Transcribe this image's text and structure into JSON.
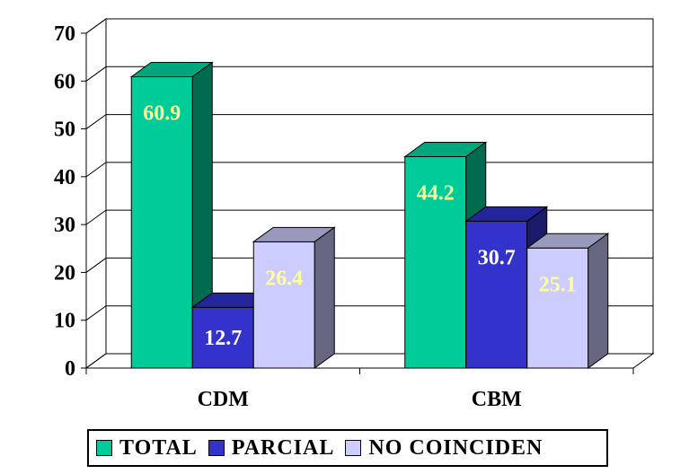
{
  "chart_data": {
    "type": "bar",
    "categories": [
      "CDM",
      "CBM"
    ],
    "series": [
      {
        "name": "TOTAL",
        "values": [
          60.9,
          44.2
        ],
        "color": "#00cc99",
        "side_color": "#006b4e",
        "top_color": "#00a77d"
      },
      {
        "name": "PARCIAL",
        "values": [
          12.7,
          30.7
        ],
        "color": "#3333cc",
        "side_color": "#1a1a6b",
        "top_color": "#24249c"
      },
      {
        "name": "NO COINCIDEN",
        "values": [
          26.4,
          25.1
        ],
        "color": "#ccccff",
        "side_color": "#666680",
        "top_color": "#9999bb"
      }
    ],
    "data_labels": [
      "60.9",
      "44.2",
      "12.7",
      "30.7",
      "26.4",
      "25.1"
    ],
    "y_ticks": [
      "0",
      "10",
      "20",
      "30",
      "40",
      "50",
      "60",
      "70"
    ],
    "ylim": [
      0,
      70
    ],
    "grid": true,
    "legend_position": "bottom",
    "data_label_colors": {
      "light": "#ffff99",
      "onDark": "#ffffff"
    }
  }
}
